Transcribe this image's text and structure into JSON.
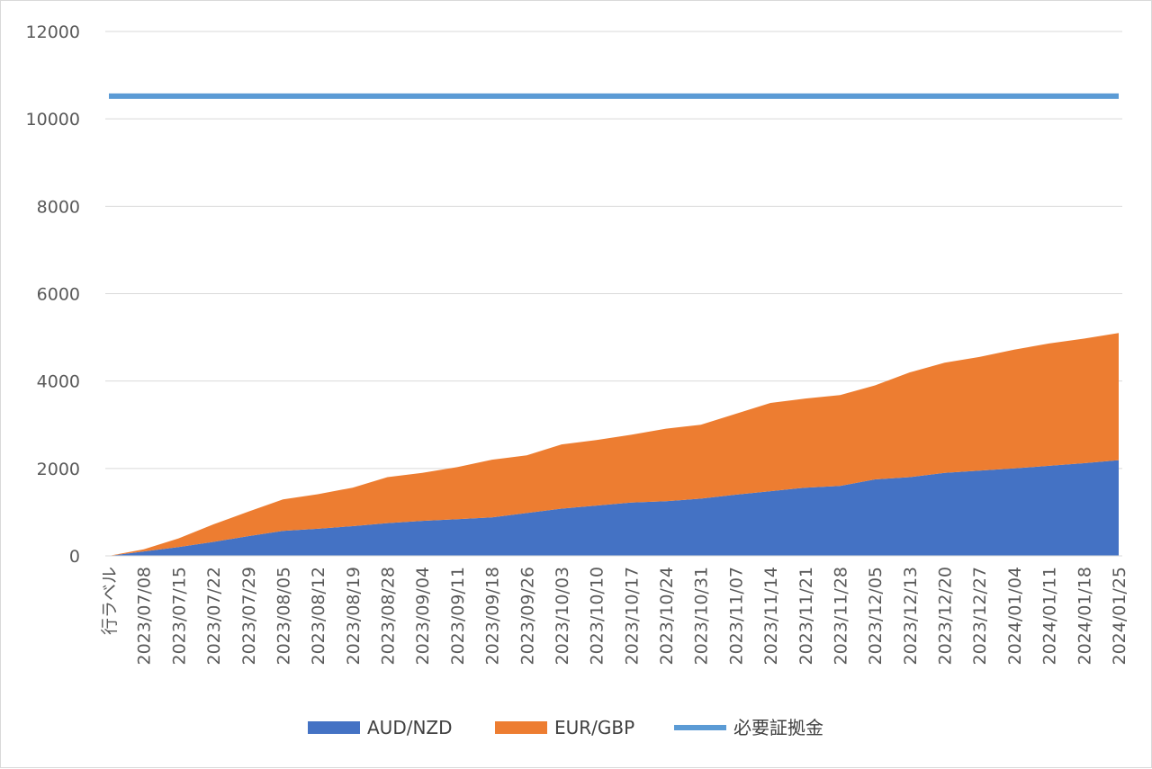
{
  "chart_data": {
    "type": "area",
    "stacked": true,
    "ylim": [
      0,
      12000
    ],
    "yticks": [
      0,
      2000,
      4000,
      6000,
      8000,
      10000,
      12000
    ],
    "grid": true,
    "legend_position": "bottom",
    "x_tick_labels": [
      "行ラベル",
      "2023/07/08",
      "2023/07/15",
      "2023/07/22",
      "2023/07/29",
      "2023/08/05",
      "2023/08/12",
      "2023/08/19",
      "2023/08/28",
      "2023/09/04",
      "2023/09/11",
      "2023/09/18",
      "2023/09/26",
      "2023/10/03",
      "2023/10/10",
      "2023/10/17",
      "2023/10/24",
      "2023/10/31",
      "2023/11/07",
      "2023/11/14",
      "2023/11/21",
      "2023/11/28",
      "2023/12/05",
      "2023/12/13",
      "2023/12/20",
      "2023/12/27",
      "2024/01/04",
      "2024/01/11",
      "2024/01/18",
      "2024/01/25"
    ],
    "series": [
      {
        "name": "AUD/NZD",
        "kind": "area",
        "color": "#4472c4",
        "values": [
          0,
          100,
          200,
          320,
          450,
          570,
          620,
          680,
          750,
          800,
          840,
          880,
          980,
          1080,
          1150,
          1220,
          1250,
          1310,
          1400,
          1480,
          1560,
          1600,
          1750,
          1800,
          1900,
          1950,
          2000,
          2060,
          2120,
          2190
        ]
      },
      {
        "name": "EUR/GBP",
        "kind": "area",
        "color": "#ed7d31",
        "values": [
          0,
          50,
          200,
          400,
          560,
          720,
          790,
          880,
          1050,
          1100,
          1190,
          1320,
          1320,
          1470,
          1500,
          1550,
          1660,
          1690,
          1850,
          2020,
          2040,
          2080,
          2150,
          2400,
          2520,
          2600,
          2720,
          2800,
          2850,
          2910
        ]
      },
      {
        "name": "必要証拠金",
        "kind": "line",
        "color": "#5b9bd5",
        "values": [
          10520,
          10520,
          10520,
          10520,
          10520,
          10520,
          10520,
          10520,
          10520,
          10520,
          10520,
          10520,
          10520,
          10520,
          10520,
          10520,
          10520,
          10520,
          10520,
          10520,
          10520,
          10520,
          10520,
          10520,
          10520,
          10520,
          10520,
          10520,
          10520,
          10520
        ]
      }
    ]
  }
}
